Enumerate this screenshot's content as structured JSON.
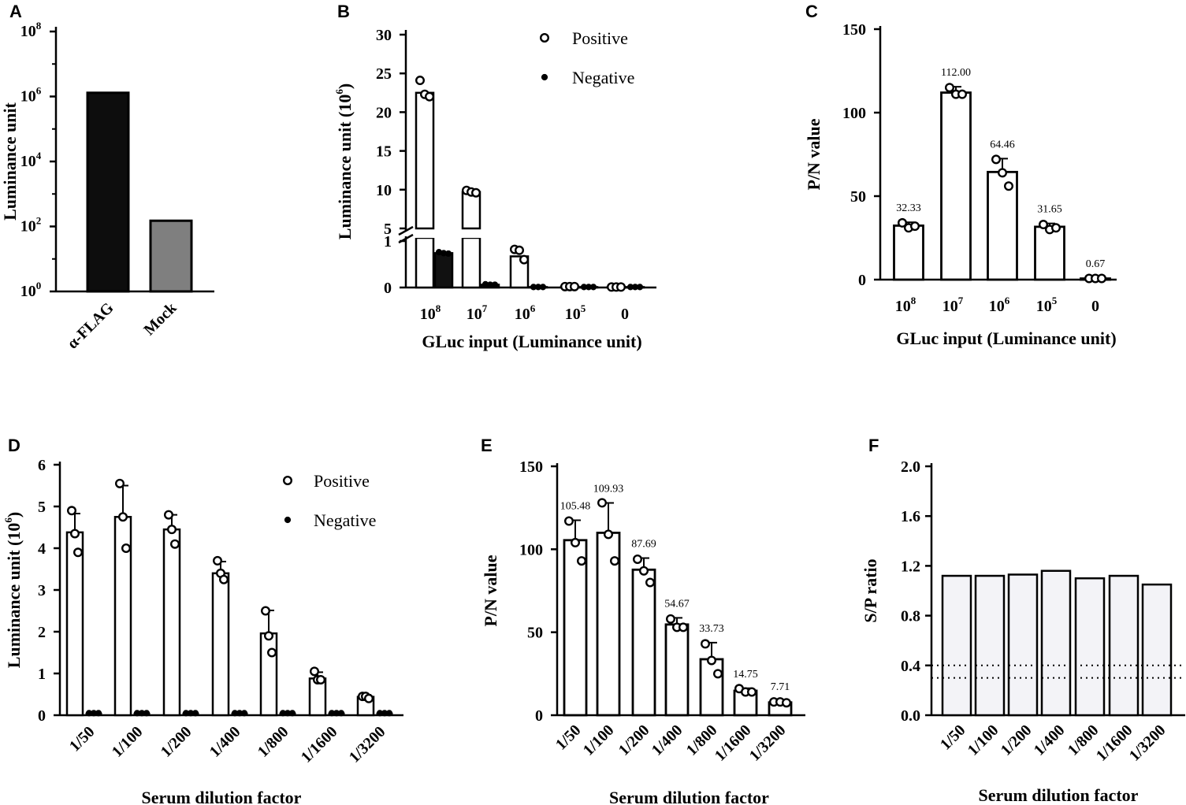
{
  "chart_data": [
    {
      "id": "A",
      "panel_label": "A",
      "type": "bar",
      "scale": "log",
      "categories": [
        "α-FLAG",
        "Mock"
      ],
      "values": [
        1300000,
        150
      ],
      "bar_colors": [
        "#0d0d0d",
        "#7f7f7f"
      ],
      "ylabel": "Luminance unit",
      "ylim": [
        1,
        100000000
      ],
      "yticks": [
        {
          "base": "10",
          "exp": "0"
        },
        {
          "base": "10",
          "exp": "2"
        },
        {
          "base": "10",
          "exp": "4"
        },
        {
          "base": "10",
          "exp": "6"
        },
        {
          "base": "10",
          "exp": "8"
        }
      ]
    },
    {
      "id": "B",
      "panel_label": "B",
      "type": "bar",
      "axis_break": true,
      "xlabel": "GLuc input (Luminance unit)",
      "ylabel": "Luminance unit (10",
      "ylabel_sup": "6",
      "ylabel_close": ")",
      "yticks_lower": [
        "0",
        "1"
      ],
      "yticks_upper": [
        "5",
        "10",
        "15",
        "20",
        "25",
        "30"
      ],
      "categories": [
        {
          "base": "10",
          "exp": "8"
        },
        {
          "base": "10",
          "exp": "7"
        },
        {
          "base": "10",
          "exp": "6"
        },
        {
          "base": "10",
          "exp": "5"
        },
        {
          "base": "0",
          "exp": ""
        }
      ],
      "series": [
        {
          "name": "Positive",
          "values": [
            22.5,
            9.7,
            0.67,
            0.02,
            0.01
          ],
          "points": [
            [
              24.1,
              22.3,
              22.0
            ],
            [
              9.9,
              9.7,
              9.6
            ],
            [
              0.82,
              0.8,
              0.6
            ],
            [
              0.02,
              0.02,
              0.02
            ],
            [
              0.01,
              0.01,
              0.01
            ]
          ],
          "fill": "#ffffff",
          "marker": "open-circle"
        },
        {
          "name": "Negative",
          "values": [
            0.74,
            0.06,
            0.01,
            0.01,
            0.01
          ],
          "points": [
            [
              0.76,
              0.74,
              0.73
            ],
            [
              0.07,
              0.06,
              0.06
            ],
            [
              0.01,
              0.01,
              0.01
            ],
            [
              0.01,
              0.01,
              0.01
            ],
            [
              0.01,
              0.01,
              0.01
            ]
          ],
          "fill": "#111111",
          "marker": "filled-circle"
        }
      ],
      "legend": [
        "Positive",
        "Negative"
      ]
    },
    {
      "id": "C",
      "panel_label": "C",
      "type": "bar",
      "xlabel": "GLuc input (Luminance unit)",
      "ylabel": "P/N value",
      "ylim": [
        0,
        150
      ],
      "yticks": [
        "0",
        "50",
        "100",
        "150"
      ],
      "categories": [
        {
          "base": "10",
          "exp": "8"
        },
        {
          "base": "10",
          "exp": "7"
        },
        {
          "base": "10",
          "exp": "6"
        },
        {
          "base": "10",
          "exp": "5"
        },
        {
          "base": "0",
          "exp": ""
        }
      ],
      "values": [
        32.33,
        112.0,
        64.46,
        31.65,
        0.67
      ],
      "sd": [
        2,
        3.5,
        8,
        2,
        0.3
      ],
      "points": [
        [
          34,
          31,
          32
        ],
        [
          115,
          111,
          111
        ],
        [
          72,
          64,
          56
        ],
        [
          33,
          30,
          31
        ],
        [
          0.7,
          0.7,
          0.7
        ]
      ],
      "data_labels": [
        "32.33",
        "112.00",
        "64.46",
        "31.65",
        "0.67"
      ]
    },
    {
      "id": "D",
      "panel_label": "D",
      "type": "bar",
      "xlabel": "Serum dilution factor",
      "ylabel": "Luminance unit (10",
      "ylabel_sup": "6",
      "ylabel_close": ")",
      "ylim": [
        0,
        6
      ],
      "yticks": [
        "0",
        "1",
        "2",
        "3",
        "4",
        "5",
        "6"
      ],
      "categories": [
        "1/50",
        "1/100",
        "1/200",
        "1/400",
        "1/800",
        "1/1600",
        "1/3200"
      ],
      "series": [
        {
          "name": "Positive",
          "values": [
            4.38,
            4.75,
            4.45,
            3.4,
            1.96,
            0.88,
            0.44
          ],
          "sd": [
            0.45,
            0.75,
            0.35,
            0.28,
            0.55,
            0.15,
            0.05
          ],
          "points": [
            [
              4.9,
              4.35,
              3.9
            ],
            [
              5.55,
              4.75,
              4.0
            ],
            [
              4.8,
              4.45,
              4.1
            ],
            [
              3.7,
              3.4,
              3.25
            ],
            [
              2.5,
              1.9,
              1.5
            ],
            [
              1.05,
              0.85,
              0.85
            ],
            [
              0.45,
              0.45,
              0.4
            ]
          ],
          "fill": "#ffffff",
          "marker": "open-circle"
        },
        {
          "name": "Negative",
          "values": [
            0.05,
            0.05,
            0.05,
            0.05,
            0.05,
            0.05,
            0.05
          ],
          "points": [
            [
              0.05,
              0.05,
              0.05
            ],
            [
              0.05,
              0.05,
              0.05
            ],
            [
              0.05,
              0.05,
              0.05
            ],
            [
              0.05,
              0.05,
              0.05
            ],
            [
              0.05,
              0.05,
              0.05
            ],
            [
              0.05,
              0.05,
              0.05
            ],
            [
              0.05,
              0.05,
              0.05
            ]
          ],
          "fill": "#111111",
          "marker": "filled-circle"
        }
      ],
      "legend": [
        "Positive",
        "Negative"
      ]
    },
    {
      "id": "E",
      "panel_label": "E",
      "type": "bar",
      "xlabel": "Serum dilution factor",
      "ylabel": "P/N value",
      "ylim": [
        0,
        150
      ],
      "yticks": [
        "0",
        "50",
        "100",
        "150"
      ],
      "categories": [
        "1/50",
        "1/100",
        "1/200",
        "1/400",
        "1/800",
        "1/1600",
        "1/3200"
      ],
      "values": [
        105.48,
        109.93,
        87.69,
        54.67,
        33.73,
        14.75,
        7.71
      ],
      "sd": [
        12,
        18,
        7,
        4,
        10,
        1.5,
        0.8
      ],
      "points": [
        [
          117,
          104,
          93
        ],
        [
          128,
          109,
          93
        ],
        [
          94,
          87,
          80
        ],
        [
          58,
          53,
          53
        ],
        [
          43,
          33,
          25
        ],
        [
          16,
          14,
          14
        ],
        [
          8,
          8,
          7.5
        ]
      ],
      "data_labels": [
        "105.48",
        "109.93",
        "87.69",
        "54.67",
        "33.73",
        "14.75",
        "7.71"
      ]
    },
    {
      "id": "F",
      "panel_label": "F",
      "type": "bar",
      "xlabel": "Serum dilution factor",
      "ylabel": "S/P ratio",
      "ylim": [
        0,
        2
      ],
      "yticks": [
        "0.0",
        "0.4",
        "0.8",
        "1.2",
        "1.6",
        "2.0"
      ],
      "categories": [
        "1/50",
        "1/100",
        "1/200",
        "1/400",
        "1/800",
        "1/1600",
        "1/3200"
      ],
      "values": [
        1.12,
        1.12,
        1.13,
        1.16,
        1.1,
        1.12,
        1.05
      ],
      "bar_fill": "#f3f3f7",
      "reference_lines": [
        0.4,
        0.3
      ]
    }
  ]
}
